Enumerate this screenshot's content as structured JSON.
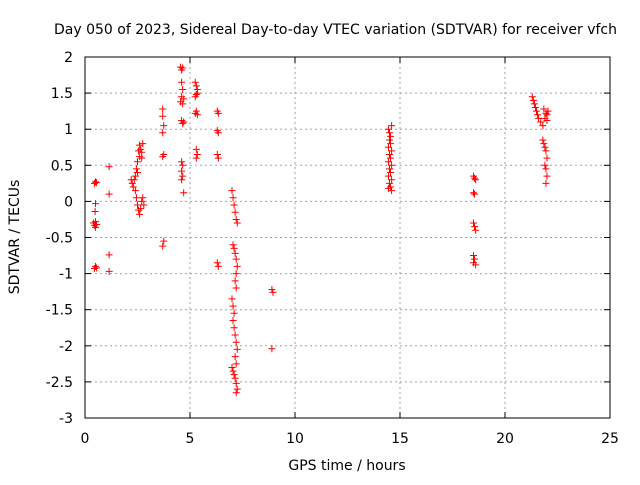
{
  "chart_data": {
    "type": "scatter",
    "title": "Day 050 of 2023, Sidereal Day-to-day VTEC variation (SDTVAR) for receiver vfch",
    "xlabel": "GPS time / hours",
    "ylabel": "SDTVAR / TECUs",
    "xlim": [
      0,
      25
    ],
    "ylim": [
      -3,
      2
    ],
    "xticks": [
      0,
      5,
      10,
      15,
      20,
      25
    ],
    "xtick_labels": [
      "0",
      "5",
      "10",
      "15",
      "20",
      "25"
    ],
    "yticks": [
      -3,
      -2.5,
      -2,
      -1.5,
      -1,
      -0.5,
      0,
      0.5,
      1,
      1.5,
      2
    ],
    "ytick_labels": [
      "-3",
      "-2.5",
      "-2",
      "-1.5",
      "-1",
      "-0.5",
      "0",
      "0.5",
      "1",
      "1.5",
      "2"
    ],
    "grid": true,
    "marker": "+",
    "color": "#ff0000",
    "series": [
      {
        "name": "SDTVAR",
        "points": [
          [
            0.5,
            0.27
          ],
          [
            0.45,
            0.25
          ],
          [
            0.55,
            0.26
          ],
          [
            0.4,
            -0.3
          ],
          [
            0.45,
            -0.33
          ],
          [
            0.5,
            -0.36
          ],
          [
            0.55,
            -0.32
          ],
          [
            0.5,
            -0.28
          ],
          [
            0.48,
            -0.14
          ],
          [
            0.5,
            -0.03
          ],
          [
            0.45,
            -0.93
          ],
          [
            0.5,
            -0.9
          ],
          [
            0.55,
            -0.92
          ],
          [
            1.15,
            0.48
          ],
          [
            1.15,
            0.1
          ],
          [
            1.15,
            -0.74
          ],
          [
            1.15,
            -0.97
          ],
          [
            2.2,
            0.3
          ],
          [
            2.25,
            0.25
          ],
          [
            2.3,
            0.2
          ],
          [
            2.35,
            0.3
          ],
          [
            2.4,
            0.35
          ],
          [
            2.45,
            0.45
          ],
          [
            2.5,
            0.55
          ],
          [
            2.55,
            0.7
          ],
          [
            2.6,
            0.78
          ],
          [
            2.65,
            0.72
          ],
          [
            2.7,
            0.68
          ],
          [
            2.75,
            0.8
          ],
          [
            2.4,
            0.15
          ],
          [
            2.45,
            0.05
          ],
          [
            2.5,
            -0.05
          ],
          [
            2.55,
            -0.12
          ],
          [
            2.6,
            -0.18
          ],
          [
            2.65,
            -0.1
          ],
          [
            2.7,
            0.0
          ],
          [
            2.75,
            0.05
          ],
          [
            2.8,
            -0.05
          ],
          [
            2.6,
            0.62
          ],
          [
            2.7,
            0.6
          ],
          [
            2.5,
            0.4
          ],
          [
            3.7,
            1.28
          ],
          [
            3.7,
            1.18
          ],
          [
            3.75,
            1.05
          ],
          [
            3.7,
            0.95
          ],
          [
            3.75,
            0.65
          ],
          [
            3.7,
            0.62
          ],
          [
            3.75,
            -0.55
          ],
          [
            3.7,
            -0.62
          ],
          [
            4.55,
            1.86
          ],
          [
            4.6,
            1.82
          ],
          [
            4.65,
            1.85
          ],
          [
            4.6,
            1.65
          ],
          [
            4.65,
            1.55
          ],
          [
            4.6,
            1.45
          ],
          [
            4.55,
            1.38
          ],
          [
            4.65,
            1.35
          ],
          [
            4.7,
            1.42
          ],
          [
            4.6,
            1.12
          ],
          [
            4.65,
            1.08
          ],
          [
            4.7,
            1.1
          ],
          [
            4.6,
            0.55
          ],
          [
            4.65,
            0.5
          ],
          [
            4.6,
            0.42
          ],
          [
            4.65,
            0.35
          ],
          [
            4.6,
            0.3
          ],
          [
            4.7,
            0.12
          ],
          [
            5.25,
            1.65
          ],
          [
            5.3,
            1.6
          ],
          [
            5.35,
            1.55
          ],
          [
            5.3,
            1.48
          ],
          [
            5.25,
            1.45
          ],
          [
            5.35,
            1.5
          ],
          [
            5.3,
            1.25
          ],
          [
            5.25,
            1.22
          ],
          [
            5.35,
            1.2
          ],
          [
            5.3,
            0.72
          ],
          [
            5.35,
            0.65
          ],
          [
            5.3,
            0.6
          ],
          [
            6.3,
            1.25
          ],
          [
            6.35,
            1.22
          ],
          [
            6.3,
            0.98
          ],
          [
            6.35,
            0.95
          ],
          [
            6.3,
            0.65
          ],
          [
            6.35,
            0.6
          ],
          [
            6.3,
            -0.85
          ],
          [
            6.35,
            -0.9
          ],
          [
            7.0,
            0.15
          ],
          [
            7.05,
            0.05
          ],
          [
            7.1,
            -0.05
          ],
          [
            7.15,
            -0.15
          ],
          [
            7.2,
            -0.25
          ],
          [
            7.25,
            -0.3
          ],
          [
            7.05,
            -0.6
          ],
          [
            7.1,
            -0.65
          ],
          [
            7.15,
            -0.72
          ],
          [
            7.2,
            -0.8
          ],
          [
            7.25,
            -0.9
          ],
          [
            7.2,
            -1.0
          ],
          [
            7.15,
            -1.1
          ],
          [
            7.2,
            -1.2
          ],
          [
            7.0,
            -1.35
          ],
          [
            7.05,
            -1.45
          ],
          [
            7.1,
            -1.55
          ],
          [
            7.05,
            -1.65
          ],
          [
            7.1,
            -1.75
          ],
          [
            7.15,
            -1.85
          ],
          [
            7.2,
            -1.95
          ],
          [
            7.25,
            -2.05
          ],
          [
            7.15,
            -2.15
          ],
          [
            7.2,
            -2.25
          ],
          [
            7.0,
            -2.3
          ],
          [
            7.05,
            -2.35
          ],
          [
            7.1,
            -2.4
          ],
          [
            7.15,
            -2.45
          ],
          [
            7.2,
            -2.52
          ],
          [
            7.25,
            -2.6
          ],
          [
            7.2,
            -2.65
          ],
          [
            8.9,
            -1.22
          ],
          [
            8.95,
            -1.26
          ],
          [
            8.9,
            -2.04
          ],
          [
            14.45,
            1.0
          ],
          [
            14.5,
            0.95
          ],
          [
            14.55,
            0.9
          ],
          [
            14.6,
            1.05
          ],
          [
            14.5,
            0.85
          ],
          [
            14.55,
            0.8
          ],
          [
            14.45,
            0.75
          ],
          [
            14.6,
            0.7
          ],
          [
            14.5,
            0.65
          ],
          [
            14.55,
            0.6
          ],
          [
            14.45,
            0.55
          ],
          [
            14.6,
            0.5
          ],
          [
            14.5,
            0.45
          ],
          [
            14.55,
            0.4
          ],
          [
            14.45,
            0.35
          ],
          [
            14.6,
            0.3
          ],
          [
            14.5,
            0.25
          ],
          [
            14.55,
            0.2
          ],
          [
            14.45,
            0.18
          ],
          [
            14.6,
            0.15
          ],
          [
            18.5,
            0.35
          ],
          [
            18.55,
            0.32
          ],
          [
            18.6,
            0.3
          ],
          [
            18.5,
            0.12
          ],
          [
            18.55,
            0.1
          ],
          [
            18.5,
            -0.3
          ],
          [
            18.55,
            -0.35
          ],
          [
            18.6,
            -0.4
          ],
          [
            18.5,
            -0.75
          ],
          [
            18.55,
            -0.8
          ],
          [
            18.5,
            -0.85
          ],
          [
            18.6,
            -0.88
          ],
          [
            21.3,
            1.45
          ],
          [
            21.35,
            1.4
          ],
          [
            21.4,
            1.35
          ],
          [
            21.45,
            1.3
          ],
          [
            21.5,
            1.25
          ],
          [
            21.55,
            1.2
          ],
          [
            21.6,
            1.15
          ],
          [
            21.7,
            1.1
          ],
          [
            21.8,
            1.05
          ],
          [
            21.9,
            1.15
          ],
          [
            22.0,
            1.2
          ],
          [
            22.05,
            1.25
          ],
          [
            21.85,
            1.28
          ],
          [
            21.95,
            1.22
          ],
          [
            22.0,
            1.12
          ],
          [
            21.8,
            0.85
          ],
          [
            21.85,
            0.8
          ],
          [
            21.9,
            0.75
          ],
          [
            21.95,
            0.7
          ],
          [
            22.0,
            0.6
          ],
          [
            21.9,
            0.5
          ],
          [
            21.95,
            0.45
          ],
          [
            22.0,
            0.35
          ],
          [
            21.95,
            0.25
          ]
        ]
      }
    ]
  }
}
